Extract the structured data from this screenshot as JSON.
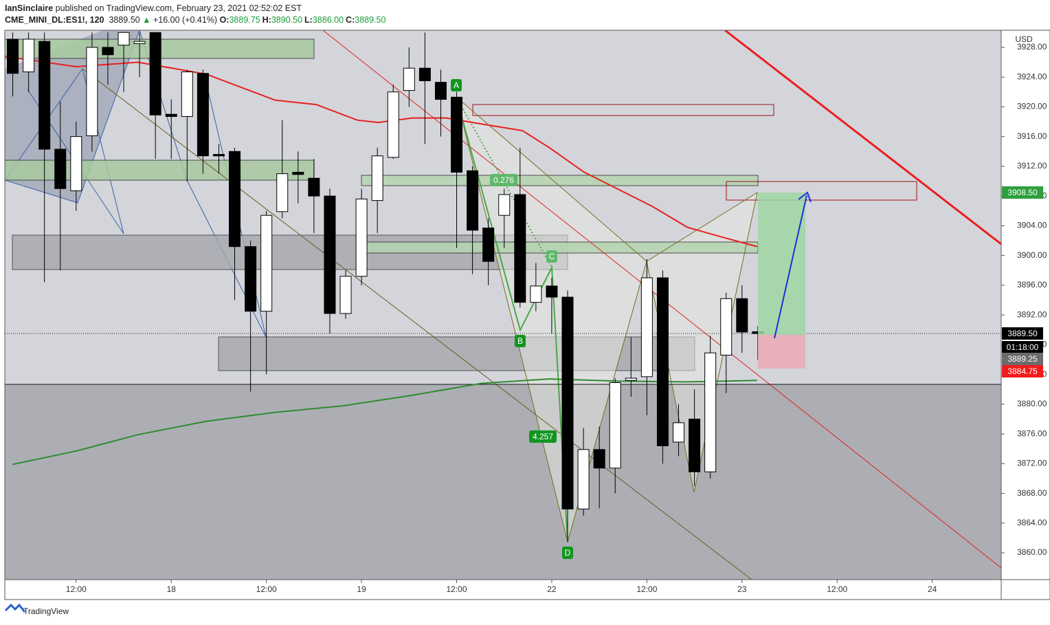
{
  "header": {
    "publisher": "IanSinclaire",
    "published": "published on TradingView.com, February 23, 2021 02:52:02 EST",
    "symbol": "CME_MINI_DL:ES1!, 120",
    "last": "3889.50",
    "arrow": "▲",
    "change": "+16.00 (+0.41%)",
    "ohlc": [
      {
        "key": "O:",
        "value": "3889.75"
      },
      {
        "key": "H:",
        "value": "3890.50"
      },
      {
        "key": "L:",
        "value": "3886.00"
      },
      {
        "key": "C:",
        "value": "3889.50"
      }
    ]
  },
  "chart_data": {
    "type": "candlestick",
    "currency": "USD",
    "x": [
      -20,
      -18,
      -16,
      -14,
      -12,
      -10,
      -8,
      -6,
      -4,
      -2,
      0,
      2,
      4,
      6,
      8,
      10,
      12,
      14,
      16,
      18,
      20,
      22,
      24,
      26,
      28,
      30,
      32,
      34,
      36,
      38,
      40,
      42,
      44,
      46,
      48,
      50,
      52,
      54,
      56,
      58,
      60,
      62,
      64,
      66,
      68,
      70,
      72,
      74
    ],
    "open": [
      3929.1,
      3924.7,
      3928.8,
      3914.3,
      3908.7,
      3916.1,
      3928,
      3928.3,
      3928.5,
      3930,
      3919,
      3918.7,
      3924.5,
      3913.6,
      3914,
      3901.2,
      3892.5,
      3905.9,
      3911.2,
      3910.4,
      3908,
      3892.2,
      3897.2,
      3907.4,
      3913.2,
      3922.2,
      3925.2,
      3923.3,
      3921.3,
      3911.4,
      3903.7,
      3905.4,
      3908.2,
      3893.7,
      3895.9,
      3894.4,
      3865.9,
      3873.9,
      3871.4,
      3883.2,
      3883.7,
      3897,
      3874.9,
      3878,
      3870.9,
      3886.6,
      3894.2,
      3889.75
    ],
    "high": [
      3930,
      3930,
      3930,
      3920.7,
      3918,
      3930,
      3930,
      3930,
      3930,
      3930,
      3921,
      3925,
      3925,
      3915,
      3914.5,
      3902,
      3906,
      3918.2,
      3914,
      3913,
      3909,
      3898,
      3909,
      3914.5,
      3923,
      3928,
      3930,
      3925,
      3922,
      3912,
      3905,
      3909,
      3914.5,
      3899,
      3897,
      3895.3,
      3876.8,
      3877,
      3883.5,
      3889,
      3899.5,
      3898,
      3880,
      3882,
      3889.2,
      3895,
      3896,
      3890.5
    ],
    "low": [
      3921.4,
      3922,
      3896.4,
      3898,
      3906,
      3914,
      3923,
      3922,
      3924,
      3913,
      3913,
      3910,
      3911,
      3911,
      3894,
      3881.7,
      3884,
      3905,
      3907,
      3903,
      3889.5,
      3891.5,
      3896,
      3903,
      3913,
      3920,
      3915,
      3916,
      3901,
      3897.5,
      3896,
      3901,
      3893,
      3892.5,
      3889.5,
      3861.5,
      3865,
      3866,
      3868,
      3881,
      3878.5,
      3872,
      3873,
      3869,
      3870,
      3881.5,
      3886.9,
      3886
    ],
    "close": [
      3924.5,
      3929.1,
      3914.3,
      3909,
      3916,
      3928,
      3927,
      3930,
      3928.8,
      3918.9,
      3918.7,
      3924.7,
      3913.4,
      3913.4,
      3901.2,
      3892.5,
      3905.4,
      3911,
      3910.9,
      3908,
      3892.2,
      3897.2,
      3907.6,
      3913.4,
      3922,
      3925.2,
      3923.5,
      3921,
      3911.2,
      3903.4,
      3899.2,
      3908.2,
      3893.7,
      3895.9,
      3894.4,
      3865.9,
      3873.9,
      3871.4,
      3882.9,
      3883.5,
      3897,
      3874.4,
      3877.5,
      3870.9,
      3886.9,
      3894.2,
      3889.7,
      3889.5
    ],
    "up_color": "#ffffff",
    "down_color": "#000000",
    "moving_averages": [
      {
        "color": "#e8211f",
        "x": [
          -21,
          -12,
          -4.2,
          4.4,
          13.1,
          18.3,
          23.5,
          26.1,
          30.4,
          34.7,
          39.1,
          44.3,
          47.7,
          52.1,
          56.4,
          60.7,
          65.1,
          69.4,
          73.9
        ],
        "values": [
          3926.8,
          3925.4,
          3926,
          3924.4,
          3920.9,
          3920.3,
          3918.2,
          3917.9,
          3918.5,
          3918.5,
          3917.7,
          3916.8,
          3914.5,
          3911.2,
          3908.9,
          3906.6,
          3903.8,
          3902.5,
          3901.2
        ]
      },
      {
        "color": "#2e8b2e",
        "x": [
          -20,
          -12,
          -4.2,
          4.4,
          13.1,
          21.8,
          30.4,
          39.1,
          47.7,
          56.4,
          65.1,
          73.9
        ],
        "values": [
          3871.9,
          3873.7,
          3875.9,
          3877.7,
          3878.9,
          3879.8,
          3881.2,
          3882.8,
          3883.4,
          3883.1,
          3883,
          3883.2
        ]
      }
    ],
    "xlim": [
      -21,
      104.7
    ],
    "ylim": [
      3856.4,
      3930.3
    ],
    "xticks": [
      {
        "value": -12,
        "label": "12:00"
      },
      {
        "value": 0,
        "label": "18"
      },
      {
        "value": 12,
        "label": "12:00"
      },
      {
        "value": 24,
        "label": "19"
      },
      {
        "value": 36,
        "label": "12:00"
      },
      {
        "value": 48,
        "label": "22"
      },
      {
        "value": 60,
        "label": "12:00"
      },
      {
        "value": 72,
        "label": "23"
      },
      {
        "value": 84,
        "label": "12:00"
      },
      {
        "value": 96,
        "label": "24"
      }
    ],
    "yticks": [
      {
        "value": 3860,
        "label": "3860.00"
      },
      {
        "value": 3864,
        "label": "3864.00"
      },
      {
        "value": 3868,
        "label": "3868.00"
      },
      {
        "value": 3872,
        "label": "3872.00"
      },
      {
        "value": 3876,
        "label": "3876.00"
      },
      {
        "value": 3880,
        "label": "3880.00"
      },
      {
        "value": 3884,
        "label": "3884.00"
      },
      {
        "value": 3888,
        "label": "3888.00"
      },
      {
        "value": 3892,
        "label": "3892.00"
      },
      {
        "value": 3896,
        "label": "3896.00"
      },
      {
        "value": 3900,
        "label": "3900.00"
      },
      {
        "value": 3904,
        "label": "3904.00"
      },
      {
        "value": 3908,
        "label": "3908.00"
      },
      {
        "value": 3912,
        "label": "3912.00"
      },
      {
        "value": 3916,
        "label": "3916.00"
      },
      {
        "value": 3920,
        "label": "3920.00"
      },
      {
        "value": 3924,
        "label": "3924.00"
      },
      {
        "value": 3928,
        "label": "3928.00"
      }
    ],
    "grid": false,
    "price_tags": [
      {
        "label": "3908.50",
        "color": "#2e9e3e"
      },
      {
        "label": "3889.50",
        "color": "#000000"
      },
      {
        "label": "01:18:00",
        "color": "#000000"
      },
      {
        "label": "3889.25",
        "color": "#6b6b6b"
      },
      {
        "label": "3884.75",
        "color": "#f01b1b"
      }
    ],
    "pattern_labels": [
      {
        "label": "A",
        "color": "#12951f"
      },
      {
        "label": "B",
        "color": "#12951f"
      },
      {
        "label": "C",
        "color": "#5fb86a"
      },
      {
        "label": "D",
        "color": "#12951f"
      },
      {
        "label": "0.276",
        "color": "#5fb86a"
      },
      {
        "label": "4.257",
        "color": "#12951f"
      }
    ]
  },
  "footer": "TradingView"
}
